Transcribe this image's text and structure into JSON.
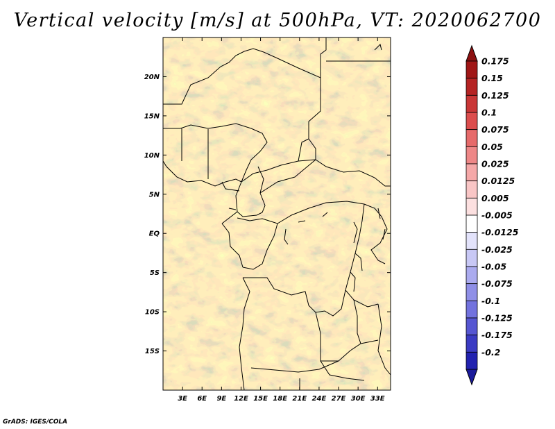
{
  "title": "Vertical velocity [m/s] at 500hPa, VT: 2020062700",
  "credit": "GrADS: IGES/COLA",
  "map": {
    "lon_range": [
      0,
      35
    ],
    "lat_range": [
      -20,
      25
    ],
    "lon_ticks": [
      {
        "value": 3,
        "label": "3E"
      },
      {
        "value": 6,
        "label": "6E"
      },
      {
        "value": 9,
        "label": "9E"
      },
      {
        "value": 12,
        "label": "12E"
      },
      {
        "value": 15,
        "label": "15E"
      },
      {
        "value": 18,
        "label": "18E"
      },
      {
        "value": 21,
        "label": "21E"
      },
      {
        "value": 24,
        "label": "24E"
      },
      {
        "value": 27,
        "label": "27E"
      },
      {
        "value": 30,
        "label": "30E"
      },
      {
        "value": 33,
        "label": "33E"
      }
    ],
    "lat_ticks": [
      {
        "value": 20,
        "label": "20N"
      },
      {
        "value": 15,
        "label": "15N"
      },
      {
        "value": 10,
        "label": "10N"
      },
      {
        "value": 5,
        "label": "5N"
      },
      {
        "value": 0,
        "label": "EQ"
      },
      {
        "value": -5,
        "label": "5S"
      },
      {
        "value": -10,
        "label": "10S"
      },
      {
        "value": -15,
        "label": "15S"
      }
    ]
  },
  "colorbar": {
    "levels": [
      {
        "label": "0.175",
        "color": "#a01616"
      },
      {
        "label": "0.15",
        "color": "#b52323"
      },
      {
        "label": "0.125",
        "color": "#c93636"
      },
      {
        "label": "0.1",
        "color": "#dc4d4d"
      },
      {
        "label": "0.075",
        "color": "#e66a6a"
      },
      {
        "label": "0.05",
        "color": "#ee8787"
      },
      {
        "label": "0.025",
        "color": "#f5a8a8"
      },
      {
        "label": "0.0125",
        "color": "#f9c6c6"
      },
      {
        "label": "0.005",
        "color": "#fce0e0"
      },
      {
        "label": "-0.005",
        "color": "#ffffff"
      },
      {
        "label": "-0.0125",
        "color": "#e3e3fb"
      },
      {
        "label": "-0.025",
        "color": "#c8c8f5"
      },
      {
        "label": "-0.05",
        "color": "#ababef"
      },
      {
        "label": "-0.075",
        "color": "#8f8fe7"
      },
      {
        "label": "-0.1",
        "color": "#7272de"
      },
      {
        "label": "-0.125",
        "color": "#5656d2"
      },
      {
        "label": "-0.175",
        "color": "#3b3bc3"
      },
      {
        "label": "-0.2",
        "color": "#2222b0"
      }
    ],
    "top_cap_color": "#8c1010",
    "bottom_cap_color": "#1a1a9a"
  }
}
